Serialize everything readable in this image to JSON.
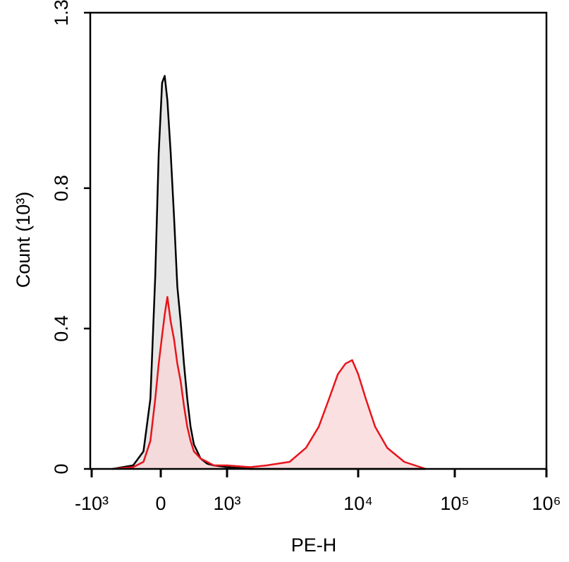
{
  "chart_data": {
    "type": "histogram_overlay",
    "xlabel": "PE-H",
    "ylabel": "Count (10³)",
    "x": [
      -700,
      -400,
      -250,
      -150,
      -80,
      -30,
      20,
      60,
      100,
      150,
      200,
      250,
      300,
      350,
      400,
      450,
      500,
      600,
      700,
      800,
      1000,
      1500,
      2000,
      3000,
      4000,
      5000,
      6000,
      7000,
      8000,
      9000,
      10000,
      12000,
      15000,
      20000,
      30000,
      50000
    ],
    "series": [
      {
        "color": "#000000",
        "fill_color": "#e6e6e6",
        "values": [
          0,
          0.01,
          0.05,
          0.2,
          0.55,
          0.9,
          1.1,
          1.12,
          1.05,
          0.9,
          0.72,
          0.52,
          0.42,
          0.3,
          0.2,
          0.12,
          0.07,
          0.03,
          0.015,
          0.01,
          0.005,
          0,
          0,
          0,
          0,
          0,
          0,
          0,
          0,
          0,
          0,
          0,
          0,
          0,
          0,
          0
        ]
      },
      {
        "color": "#e8141b",
        "fill_color": "#f9d6d8",
        "values": [
          0,
          0.005,
          0.02,
          0.08,
          0.2,
          0.3,
          0.38,
          0.44,
          0.49,
          0.42,
          0.37,
          0.3,
          0.25,
          0.18,
          0.12,
          0.08,
          0.05,
          0.03,
          0.02,
          0.01,
          0.01,
          0.005,
          0.01,
          0.02,
          0.06,
          0.12,
          0.2,
          0.27,
          0.3,
          0.31,
          0.27,
          0.2,
          0.12,
          0.06,
          0.02,
          0
        ]
      }
    ],
    "xscale": "biexponential",
    "xlim": [
      -1000,
      1000000
    ],
    "xticks": [
      {
        "value": -1000,
        "label": "-10³"
      },
      0,
      {
        "value": 1000,
        "label": "10³"
      },
      {
        "value": 10000,
        "label": "10⁴"
      },
      {
        "value": 100000,
        "label": "10⁵"
      },
      {
        "value": 1000000,
        "label": "10⁶"
      }
    ],
    "ylim": [
      0,
      1.3
    ],
    "yticks": [
      0,
      0.4,
      0.8,
      1.3
    ]
  }
}
